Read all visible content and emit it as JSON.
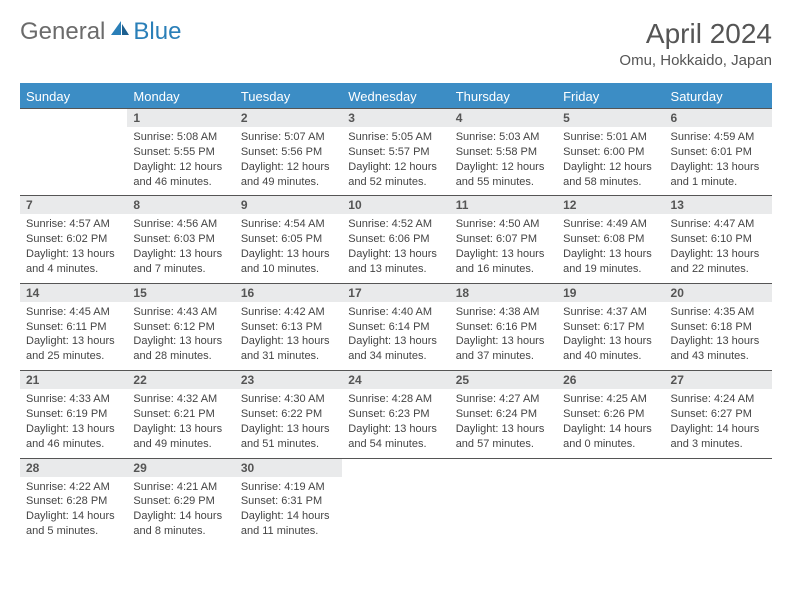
{
  "logo": {
    "general": "General",
    "blue": "Blue"
  },
  "title": "April 2024",
  "location": "Omu, Hokkaido, Japan",
  "colors": {
    "header_bg": "#3c8dc5",
    "header_text": "#ffffff",
    "daynum_bg": "#e9eaeb",
    "text": "#444444",
    "logo_gray": "#6b6b6b",
    "logo_blue": "#2a7fb8",
    "rule": "#555555"
  },
  "weekdays": [
    "Sunday",
    "Monday",
    "Tuesday",
    "Wednesday",
    "Thursday",
    "Friday",
    "Saturday"
  ],
  "weeks": [
    [
      null,
      {
        "n": "1",
        "sr": "5:08 AM",
        "ss": "5:55 PM",
        "dl": "12 hours and 46 minutes."
      },
      {
        "n": "2",
        "sr": "5:07 AM",
        "ss": "5:56 PM",
        "dl": "12 hours and 49 minutes."
      },
      {
        "n": "3",
        "sr": "5:05 AM",
        "ss": "5:57 PM",
        "dl": "12 hours and 52 minutes."
      },
      {
        "n": "4",
        "sr": "5:03 AM",
        "ss": "5:58 PM",
        "dl": "12 hours and 55 minutes."
      },
      {
        "n": "5",
        "sr": "5:01 AM",
        "ss": "6:00 PM",
        "dl": "12 hours and 58 minutes."
      },
      {
        "n": "6",
        "sr": "4:59 AM",
        "ss": "6:01 PM",
        "dl": "13 hours and 1 minute."
      }
    ],
    [
      {
        "n": "7",
        "sr": "4:57 AM",
        "ss": "6:02 PM",
        "dl": "13 hours and 4 minutes."
      },
      {
        "n": "8",
        "sr": "4:56 AM",
        "ss": "6:03 PM",
        "dl": "13 hours and 7 minutes."
      },
      {
        "n": "9",
        "sr": "4:54 AM",
        "ss": "6:05 PM",
        "dl": "13 hours and 10 minutes."
      },
      {
        "n": "10",
        "sr": "4:52 AM",
        "ss": "6:06 PM",
        "dl": "13 hours and 13 minutes."
      },
      {
        "n": "11",
        "sr": "4:50 AM",
        "ss": "6:07 PM",
        "dl": "13 hours and 16 minutes."
      },
      {
        "n": "12",
        "sr": "4:49 AM",
        "ss": "6:08 PM",
        "dl": "13 hours and 19 minutes."
      },
      {
        "n": "13",
        "sr": "4:47 AM",
        "ss": "6:10 PM",
        "dl": "13 hours and 22 minutes."
      }
    ],
    [
      {
        "n": "14",
        "sr": "4:45 AM",
        "ss": "6:11 PM",
        "dl": "13 hours and 25 minutes."
      },
      {
        "n": "15",
        "sr": "4:43 AM",
        "ss": "6:12 PM",
        "dl": "13 hours and 28 minutes."
      },
      {
        "n": "16",
        "sr": "4:42 AM",
        "ss": "6:13 PM",
        "dl": "13 hours and 31 minutes."
      },
      {
        "n": "17",
        "sr": "4:40 AM",
        "ss": "6:14 PM",
        "dl": "13 hours and 34 minutes."
      },
      {
        "n": "18",
        "sr": "4:38 AM",
        "ss": "6:16 PM",
        "dl": "13 hours and 37 minutes."
      },
      {
        "n": "19",
        "sr": "4:37 AM",
        "ss": "6:17 PM",
        "dl": "13 hours and 40 minutes."
      },
      {
        "n": "20",
        "sr": "4:35 AM",
        "ss": "6:18 PM",
        "dl": "13 hours and 43 minutes."
      }
    ],
    [
      {
        "n": "21",
        "sr": "4:33 AM",
        "ss": "6:19 PM",
        "dl": "13 hours and 46 minutes."
      },
      {
        "n": "22",
        "sr": "4:32 AM",
        "ss": "6:21 PM",
        "dl": "13 hours and 49 minutes."
      },
      {
        "n": "23",
        "sr": "4:30 AM",
        "ss": "6:22 PM",
        "dl": "13 hours and 51 minutes."
      },
      {
        "n": "24",
        "sr": "4:28 AM",
        "ss": "6:23 PM",
        "dl": "13 hours and 54 minutes."
      },
      {
        "n": "25",
        "sr": "4:27 AM",
        "ss": "6:24 PM",
        "dl": "13 hours and 57 minutes."
      },
      {
        "n": "26",
        "sr": "4:25 AM",
        "ss": "6:26 PM",
        "dl": "14 hours and 0 minutes."
      },
      {
        "n": "27",
        "sr": "4:24 AM",
        "ss": "6:27 PM",
        "dl": "14 hours and 3 minutes."
      }
    ],
    [
      {
        "n": "28",
        "sr": "4:22 AM",
        "ss": "6:28 PM",
        "dl": "14 hours and 5 minutes."
      },
      {
        "n": "29",
        "sr": "4:21 AM",
        "ss": "6:29 PM",
        "dl": "14 hours and 8 minutes."
      },
      {
        "n": "30",
        "sr": "4:19 AM",
        "ss": "6:31 PM",
        "dl": "14 hours and 11 minutes."
      },
      null,
      null,
      null,
      null
    ]
  ],
  "labels": {
    "sunrise": "Sunrise:",
    "sunset": "Sunset:",
    "daylight": "Daylight:"
  }
}
